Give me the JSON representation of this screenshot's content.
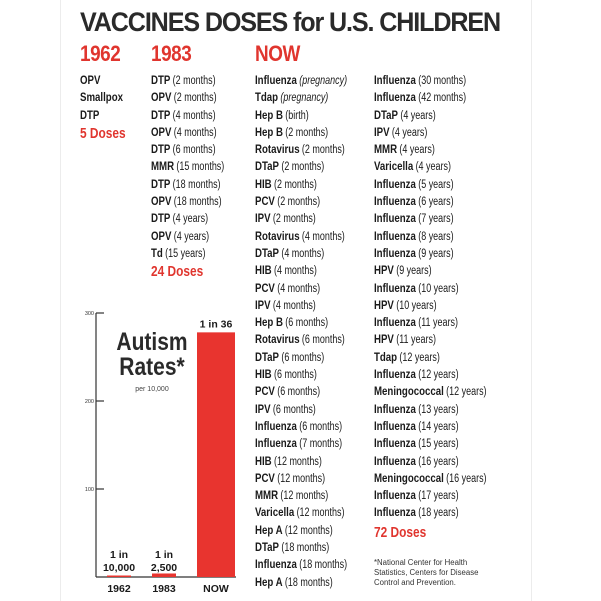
{
  "title": "VACCINES DOSES for U.S. CHILDREN",
  "columns": {
    "y1962": {
      "heading": "1962",
      "items": [
        {
          "name": "OPV",
          "age": ""
        },
        {
          "name": "Smallpox",
          "age": ""
        },
        {
          "name": "DTP",
          "age": ""
        }
      ],
      "total": "5 Doses"
    },
    "y1983": {
      "heading": "1983",
      "items": [
        {
          "name": "DTP",
          "age": "(2 months)"
        },
        {
          "name": "OPV",
          "age": "(2 months)"
        },
        {
          "name": "DTP",
          "age": "(4 months)"
        },
        {
          "name": "OPV",
          "age": "(4 months)"
        },
        {
          "name": "DTP",
          "age": "(6 months)"
        },
        {
          "name": "MMR",
          "age": "(15 months)"
        },
        {
          "name": "DTP",
          "age": "(18 months)"
        },
        {
          "name": "OPV",
          "age": "(18 months)"
        },
        {
          "name": "DTP",
          "age": "(4 years)"
        },
        {
          "name": "OPV",
          "age": "(4 years)"
        },
        {
          "name": "Td",
          "age": "(15 years)"
        }
      ],
      "total": "24 Doses"
    },
    "now": {
      "heading": "NOW",
      "items_left": [
        {
          "name": "Influenza",
          "age": "(pregnancy)",
          "italic": true
        },
        {
          "name": "Tdap",
          "age": "(pregnancy)",
          "italic": true
        },
        {
          "name": "Hep B",
          "age": "(birth)"
        },
        {
          "name": "Hep B",
          "age": "(2 months)"
        },
        {
          "name": "Rotavirus",
          "age": "(2 months)"
        },
        {
          "name": "DTaP",
          "age": "(2 months)"
        },
        {
          "name": "HIB",
          "age": "(2 months)"
        },
        {
          "name": "PCV",
          "age": "(2 months)"
        },
        {
          "name": "IPV",
          "age": "(2 months)"
        },
        {
          "name": "Rotavirus",
          "age": "(4 months)"
        },
        {
          "name": "DTaP",
          "age": "(4 months)"
        },
        {
          "name": "HIB",
          "age": "(4 months)"
        },
        {
          "name": "PCV",
          "age": "(4 months)"
        },
        {
          "name": "IPV",
          "age": "(4 months)"
        },
        {
          "name": "Hep B",
          "age": "(6 months)"
        },
        {
          "name": "Rotavirus",
          "age": "(6 months)"
        },
        {
          "name": "DTaP",
          "age": "(6 months)"
        },
        {
          "name": "HIB",
          "age": "(6 months)"
        },
        {
          "name": "PCV",
          "age": "(6 months)"
        },
        {
          "name": "IPV",
          "age": "(6 months)"
        },
        {
          "name": "Influenza",
          "age": "(6 months)"
        },
        {
          "name": "Influenza",
          "age": "(7 months)"
        },
        {
          "name": "HIB",
          "age": "(12 months)"
        },
        {
          "name": "PCV",
          "age": "(12 months)"
        },
        {
          "name": "MMR",
          "age": "(12 months)"
        },
        {
          "name": "Varicella",
          "age": "(12 months)"
        },
        {
          "name": "Hep A",
          "age": "(12 months)"
        },
        {
          "name": "DTaP",
          "age": "(18 months)"
        },
        {
          "name": "Influenza",
          "age": "(18 months)"
        },
        {
          "name": "Hep A",
          "age": "(18 months)"
        }
      ],
      "items_right": [
        {
          "name": "Influenza",
          "age": "(30 months)"
        },
        {
          "name": "Influenza",
          "age": "(42 months)"
        },
        {
          "name": "DTaP",
          "age": "(4 years)"
        },
        {
          "name": "IPV",
          "age": "(4 years)"
        },
        {
          "name": "MMR",
          "age": "(4 years)"
        },
        {
          "name": "Varicella",
          "age": "(4 years)"
        },
        {
          "name": "Influenza",
          "age": "(5 years)"
        },
        {
          "name": "Influenza",
          "age": "(6 years)"
        },
        {
          "name": "Influenza",
          "age": "(7 years)"
        },
        {
          "name": "Influenza",
          "age": "(8 years)"
        },
        {
          "name": "Influenza",
          "age": "(9 years)"
        },
        {
          "name": "HPV",
          "age": "(9 years)"
        },
        {
          "name": "Influenza",
          "age": "(10 years)"
        },
        {
          "name": "HPV",
          "age": "(10 years)"
        },
        {
          "name": "Influenza",
          "age": "(11 years)"
        },
        {
          "name": "HPV",
          "age": "(11 years)"
        },
        {
          "name": "Tdap",
          "age": "(12 years)"
        },
        {
          "name": "Influenza",
          "age": "(12 years)"
        },
        {
          "name": "Meningococcal",
          "age": "(12 years)"
        },
        {
          "name": "Influenza",
          "age": "(13 years)"
        },
        {
          "name": "Influenza",
          "age": "(14 years)"
        },
        {
          "name": "Influenza",
          "age": "(15 years)"
        },
        {
          "name": "Influenza",
          "age": "(16 years)"
        },
        {
          "name": "Meningococcal",
          "age": "(16 years)"
        },
        {
          "name": "Influenza",
          "age": "(17 years)"
        },
        {
          "name": "Influenza",
          "age": "(18 years)"
        }
      ],
      "total": "72 Doses"
    }
  },
  "footnote": "*National Center for Health Statistics, Centers for Disease Control and Prevention.",
  "colors": {
    "accent_red": "#e0352e",
    "bar_red": "#e8342f",
    "text_dark": "#1a1a1a",
    "axis": "#333333"
  },
  "chart_data": {
    "type": "bar",
    "title": "Autism Rates*",
    "subtitle": "per 10,000",
    "categories": [
      "1962",
      "1983",
      "NOW"
    ],
    "values": [
      1,
      4,
      278
    ],
    "bar_labels": [
      [
        "1 in",
        "10,000"
      ],
      [
        "1 in",
        "2,500"
      ],
      [
        "1 in 36"
      ]
    ],
    "yticks": [
      "300",
      "200",
      "100"
    ],
    "ylim": [
      0,
      300
    ],
    "grid": false,
    "legend": "none"
  }
}
